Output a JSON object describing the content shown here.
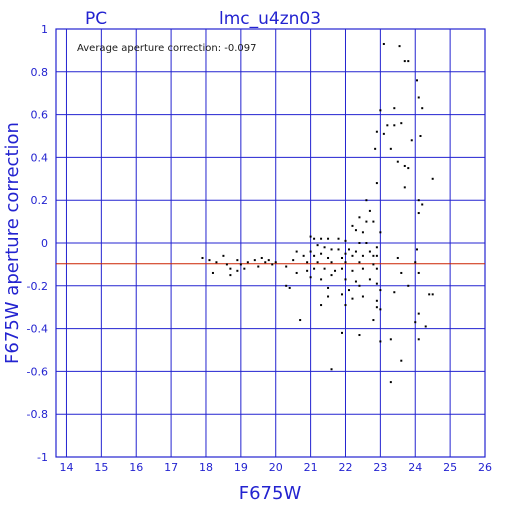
{
  "chart_data": {
    "type": "scatter",
    "title_left": "PC",
    "title": "lmc_u4zn03",
    "annotation": "Average aperture correction: -0.097",
    "xlabel": "F675W",
    "ylabel": "F675W aperture correction",
    "xlim": [
      13.7,
      26
    ],
    "ylim": [
      -1,
      1
    ],
    "xticks": [
      "14",
      "15",
      "16",
      "17",
      "18",
      "19",
      "20",
      "21",
      "22",
      "23",
      "24",
      "25",
      "26"
    ],
    "yticks": [
      "-1",
      "-0.8",
      "-0.6",
      "-0.4",
      "-0.2",
      "0",
      "0.2",
      "0.4",
      "0.6",
      "0.8",
      "1"
    ],
    "grid": true,
    "reference_line": {
      "y": -0.097,
      "color": "#cc2200"
    },
    "colors": {
      "axis": "#2323d0",
      "grid": "#2323d0",
      "points": "#000000"
    },
    "points": [
      [
        23.1,
        0.93
      ],
      [
        23.55,
        0.92
      ],
      [
        23.7,
        0.85
      ],
      [
        23.8,
        0.85
      ],
      [
        24.05,
        0.76
      ],
      [
        24.1,
        0.68
      ],
      [
        24.2,
        0.63
      ],
      [
        23.0,
        0.62
      ],
      [
        23.4,
        0.63
      ],
      [
        23.6,
        0.56
      ],
      [
        23.2,
        0.55
      ],
      [
        23.4,
        0.55
      ],
      [
        23.1,
        0.51
      ],
      [
        23.9,
        0.48
      ],
      [
        22.9,
        0.52
      ],
      [
        24.15,
        0.5
      ],
      [
        22.85,
        0.44
      ],
      [
        23.3,
        0.44
      ],
      [
        23.5,
        0.38
      ],
      [
        23.7,
        0.36
      ],
      [
        23.8,
        0.35
      ],
      [
        24.5,
        0.3
      ],
      [
        22.9,
        0.28
      ],
      [
        23.7,
        0.26
      ],
      [
        24.1,
        0.2
      ],
      [
        24.2,
        0.18
      ],
      [
        24.1,
        0.14
      ],
      [
        22.6,
        0.2
      ],
      [
        22.7,
        0.15
      ],
      [
        22.4,
        0.12
      ],
      [
        22.6,
        0.1
      ],
      [
        22.8,
        0.1
      ],
      [
        22.3,
        0.06
      ],
      [
        22.2,
        0.08
      ],
      [
        22.5,
        0.05
      ],
      [
        23.0,
        0.05
      ],
      [
        21.0,
        0.03
      ],
      [
        21.1,
        0.02
      ],
      [
        21.3,
        0.02
      ],
      [
        21.5,
        0.02
      ],
      [
        21.8,
        0.02
      ],
      [
        22.0,
        0.01
      ],
      [
        22.4,
        0.0
      ],
      [
        22.6,
        0.0
      ],
      [
        22.9,
        -0.02
      ],
      [
        21.2,
        -0.01
      ],
      [
        21.4,
        -0.02
      ],
      [
        21.6,
        -0.03
      ],
      [
        21.8,
        -0.03
      ],
      [
        22.1,
        -0.03
      ],
      [
        22.3,
        -0.04
      ],
      [
        22.7,
        -0.04
      ],
      [
        21.0,
        -0.04
      ],
      [
        21.3,
        -0.05
      ],
      [
        22.0,
        -0.05
      ],
      [
        24.05,
        -0.03
      ],
      [
        20.6,
        -0.04
      ],
      [
        20.8,
        -0.06
      ],
      [
        21.1,
        -0.06
      ],
      [
        21.5,
        -0.07
      ],
      [
        21.9,
        -0.07
      ],
      [
        22.2,
        -0.06
      ],
      [
        22.5,
        -0.06
      ],
      [
        22.8,
        -0.06
      ],
      [
        22.9,
        -0.06
      ],
      [
        20.5,
        -0.08
      ],
      [
        20.9,
        -0.09
      ],
      [
        21.2,
        -0.09
      ],
      [
        21.6,
        -0.09
      ],
      [
        22.0,
        -0.09
      ],
      [
        22.4,
        -0.09
      ],
      [
        22.8,
        -0.1
      ],
      [
        23.5,
        -0.07
      ],
      [
        24.0,
        -0.09
      ],
      [
        17.9,
        -0.07
      ],
      [
        18.1,
        -0.08
      ],
      [
        18.3,
        -0.09
      ],
      [
        18.5,
        -0.06
      ],
      [
        18.6,
        -0.1
      ],
      [
        18.7,
        -0.12
      ],
      [
        18.9,
        -0.08
      ],
      [
        19.0,
        -0.1
      ],
      [
        19.2,
        -0.09
      ],
      [
        19.4,
        -0.08
      ],
      [
        19.5,
        -0.11
      ],
      [
        19.6,
        -0.07
      ],
      [
        19.7,
        -0.09
      ],
      [
        19.8,
        -0.08
      ],
      [
        19.9,
        -0.1
      ],
      [
        20.0,
        -0.09
      ],
      [
        18.2,
        -0.14
      ],
      [
        18.7,
        -0.15
      ],
      [
        18.9,
        -0.13
      ],
      [
        19.1,
        -0.12
      ],
      [
        20.3,
        -0.11
      ],
      [
        20.6,
        -0.14
      ],
      [
        20.9,
        -0.13
      ],
      [
        21.1,
        -0.12
      ],
      [
        21.4,
        -0.12
      ],
      [
        21.7,
        -0.13
      ],
      [
        21.9,
        -0.12
      ],
      [
        22.2,
        -0.13
      ],
      [
        22.5,
        -0.12
      ],
      [
        22.9,
        -0.12
      ],
      [
        23.6,
        -0.14
      ],
      [
        24.1,
        -0.14
      ],
      [
        21.0,
        -0.16
      ],
      [
        21.3,
        -0.17
      ],
      [
        21.6,
        -0.15
      ],
      [
        22.0,
        -0.17
      ],
      [
        22.3,
        -0.18
      ],
      [
        22.7,
        -0.17
      ],
      [
        22.9,
        -0.19
      ],
      [
        23.8,
        -0.2
      ],
      [
        20.3,
        -0.2
      ],
      [
        20.4,
        -0.21
      ],
      [
        21.5,
        -0.21
      ],
      [
        22.1,
        -0.22
      ],
      [
        22.4,
        -0.2
      ],
      [
        23.0,
        -0.22
      ],
      [
        21.5,
        -0.25
      ],
      [
        21.9,
        -0.24
      ],
      [
        22.2,
        -0.26
      ],
      [
        22.5,
        -0.25
      ],
      [
        22.9,
        -0.27
      ],
      [
        23.4,
        -0.23
      ],
      [
        24.4,
        -0.24
      ],
      [
        24.5,
        -0.24
      ],
      [
        21.3,
        -0.29
      ],
      [
        22.0,
        -0.29
      ],
      [
        22.9,
        -0.3
      ],
      [
        23.0,
        -0.31
      ],
      [
        24.1,
        -0.33
      ],
      [
        20.7,
        -0.36
      ],
      [
        22.8,
        -0.36
      ],
      [
        24.0,
        -0.37
      ],
      [
        21.9,
        -0.42
      ],
      [
        22.4,
        -0.43
      ],
      [
        24.3,
        -0.39
      ],
      [
        23.0,
        -0.46
      ],
      [
        23.3,
        -0.45
      ],
      [
        24.1,
        -0.45
      ],
      [
        23.6,
        -0.55
      ],
      [
        21.6,
        -0.59
      ],
      [
        23.3,
        -0.65
      ]
    ]
  }
}
